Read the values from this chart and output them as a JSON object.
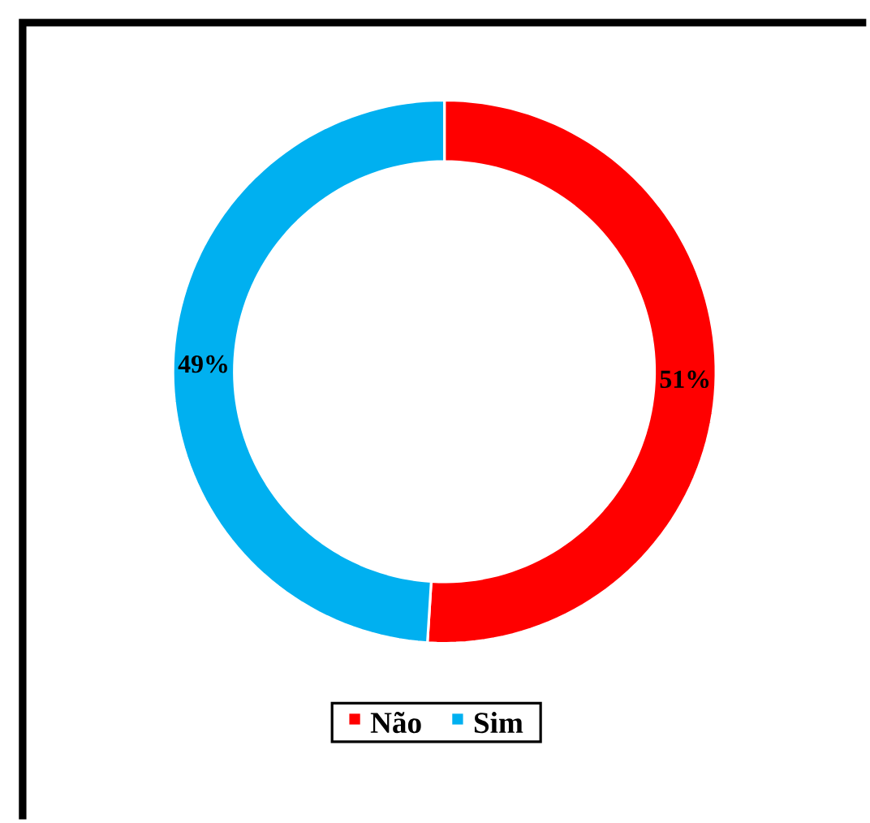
{
  "chart_data": {
    "type": "donut",
    "categories": [
      "Não",
      "Sim"
    ],
    "values": [
      51,
      49
    ],
    "colors": [
      "#ff0000",
      "#00b0f0"
    ],
    "value_labels": [
      "51%",
      "49%"
    ],
    "legend": "bottom"
  }
}
